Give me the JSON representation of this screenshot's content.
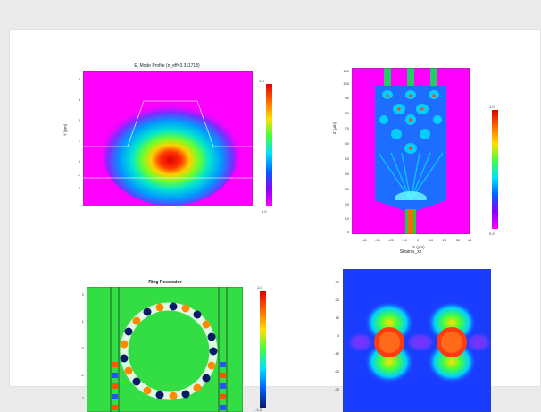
{
  "panels": {
    "mode_profile": {
      "title": "E, Mode Profile (n_eff=3.311718)",
      "ylabel": "Y (μm)",
      "yticks": [
        "4",
        "3",
        "2",
        "1",
        "0",
        "-1",
        "-2"
      ],
      "cbar_top": "1.0",
      "cbar_bottom": "0.0"
    },
    "mmi": {
      "ylabel": "Z (μm)",
      "xlabel": "X (μm)",
      "yticks": [
        "100",
        "100",
        "90",
        "80",
        "70",
        "60",
        "50",
        "40",
        "30",
        "20",
        "10",
        "0"
      ],
      "xticks": [
        "-40",
        "-30",
        "-20",
        "-10",
        "0",
        "10",
        "20",
        "30",
        "40"
      ],
      "cbar_top": "1.0",
      "cbar_bottom": "0.0"
    },
    "ring": {
      "title": "Ring Resonator",
      "yticks": [
        "2",
        "1",
        "0",
        "-1",
        "-2"
      ],
      "cbar_top": "1.0",
      "cbar_bottom": "-1.0"
    },
    "strain": {
      "title": "Strain ε_xx",
      "yticks": [
        "30",
        "20",
        "10",
        "0",
        "-10",
        "-20",
        "-30"
      ]
    }
  },
  "colors": {
    "background": "#ebebeb",
    "magenta": "#ff00ff",
    "green_field": "#33dd44",
    "strain_blue": "#1a3cff"
  }
}
